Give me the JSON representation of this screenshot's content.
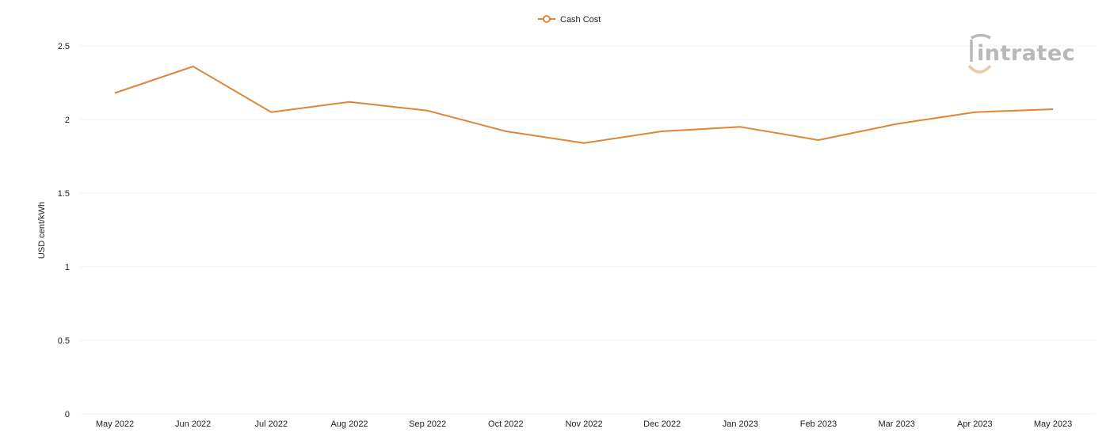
{
  "chart_data": {
    "type": "line",
    "categories": [
      "May 2022",
      "Jun 2022",
      "Jul 2022",
      "Aug 2022",
      "Sep 2022",
      "Oct 2022",
      "Nov 2022",
      "Dec 2022",
      "Jan 2023",
      "Feb 2023",
      "Mar 2023",
      "Apr 2023",
      "May 2023"
    ],
    "series": [
      {
        "name": "Cash Cost",
        "color": "#e08436",
        "values": [
          2.18,
          2.36,
          2.05,
          2.12,
          2.06,
          1.92,
          1.84,
          1.92,
          1.95,
          1.86,
          1.97,
          2.05,
          2.07
        ]
      }
    ],
    "ylabel": "USD cent/kWh",
    "xlabel": "",
    "ylim": [
      0,
      2.5
    ],
    "yticks": [
      0,
      0.5,
      1,
      1.5,
      2,
      2.5
    ],
    "ytick_labels": [
      "0",
      "0.5",
      "1",
      "1.5",
      "2",
      "2.5"
    ],
    "grid": true,
    "legend_position": "top-center"
  },
  "watermark": {
    "text": "intratec",
    "colors": {
      "primary": "#b8b8b8",
      "accent": "#e8c9a5"
    }
  }
}
